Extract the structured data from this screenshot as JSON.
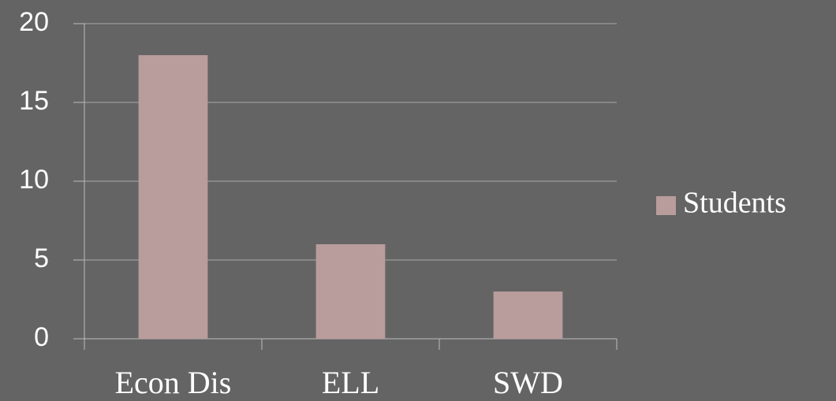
{
  "chart_data": {
    "type": "bar",
    "categories": [
      "Econ Dis",
      "ELL",
      "SWD"
    ],
    "series": [
      {
        "name": "Students",
        "color": "#b99c9c",
        "values": [
          18,
          6,
          3
        ]
      }
    ],
    "ylim": [
      0,
      20
    ],
    "yticks": [
      0,
      5,
      10,
      15,
      20
    ],
    "grid": true,
    "legend": "right"
  }
}
